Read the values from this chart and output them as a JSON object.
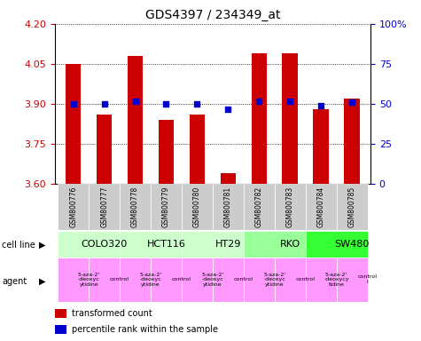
{
  "title": "GDS4397 / 234349_at",
  "samples": [
    "GSM800776",
    "GSM800777",
    "GSM800778",
    "GSM800779",
    "GSM800780",
    "GSM800781",
    "GSM800782",
    "GSM800783",
    "GSM800784",
    "GSM800785"
  ],
  "transformed_counts": [
    4.05,
    3.86,
    4.08,
    3.84,
    3.86,
    3.64,
    4.09,
    4.09,
    3.88,
    3.92
  ],
  "percentile_ranks": [
    50,
    50,
    52,
    50,
    50,
    47,
    52,
    52,
    49,
    51
  ],
  "ylim": [
    3.6,
    4.2
  ],
  "yticks": [
    3.6,
    3.75,
    3.9,
    4.05,
    4.2
  ],
  "right_yticks": [
    0,
    25,
    50,
    75,
    100
  ],
  "right_ylim": [
    0,
    100
  ],
  "bar_color": "#cc0000",
  "dot_color": "#0000cc",
  "bar_width": 0.5,
  "cell_lines": [
    {
      "name": "COLO320",
      "start": 0,
      "end": 2,
      "color": "#ccffcc"
    },
    {
      "name": "HCT116",
      "start": 2,
      "end": 4,
      "color": "#ccffcc"
    },
    {
      "name": "HT29",
      "start": 4,
      "end": 6,
      "color": "#ccffcc"
    },
    {
      "name": "RKO",
      "start": 6,
      "end": 8,
      "color": "#99ff99"
    },
    {
      "name": "SW480",
      "start": 8,
      "end": 10,
      "color": "#33ff33"
    }
  ],
  "agents": [
    {
      "name": "5-aza-2'\n-deoxyc\nytidine",
      "start": 0,
      "end": 1,
      "color": "#ff99ff"
    },
    {
      "name": "control",
      "start": 1,
      "end": 2,
      "color": "#ff99ff"
    },
    {
      "name": "5-aza-2'\n-deoxyc\nytidine",
      "start": 2,
      "end": 3,
      "color": "#ff99ff"
    },
    {
      "name": "control",
      "start": 3,
      "end": 4,
      "color": "#ff99ff"
    },
    {
      "name": "5-aza-2'\n-deoxyc\nytidine",
      "start": 4,
      "end": 5,
      "color": "#ff99ff"
    },
    {
      "name": "control",
      "start": 5,
      "end": 6,
      "color": "#ff99ff"
    },
    {
      "name": "5-aza-2'\n-deoxyc\nytidine",
      "start": 6,
      "end": 7,
      "color": "#ff99ff"
    },
    {
      "name": "control",
      "start": 7,
      "end": 8,
      "color": "#ff99ff"
    },
    {
      "name": "5-aza-2'\n-deoxycy\ntidine",
      "start": 8,
      "end": 9,
      "color": "#ff99ff"
    },
    {
      "name": "control\nl",
      "start": 9,
      "end": 10,
      "color": "#ff99ff"
    }
  ],
  "ylabel_left_color": "#cc0000",
  "ylabel_right_color": "#0000cc",
  "grid_color": "#000000",
  "sample_row_color": "#cccccc"
}
